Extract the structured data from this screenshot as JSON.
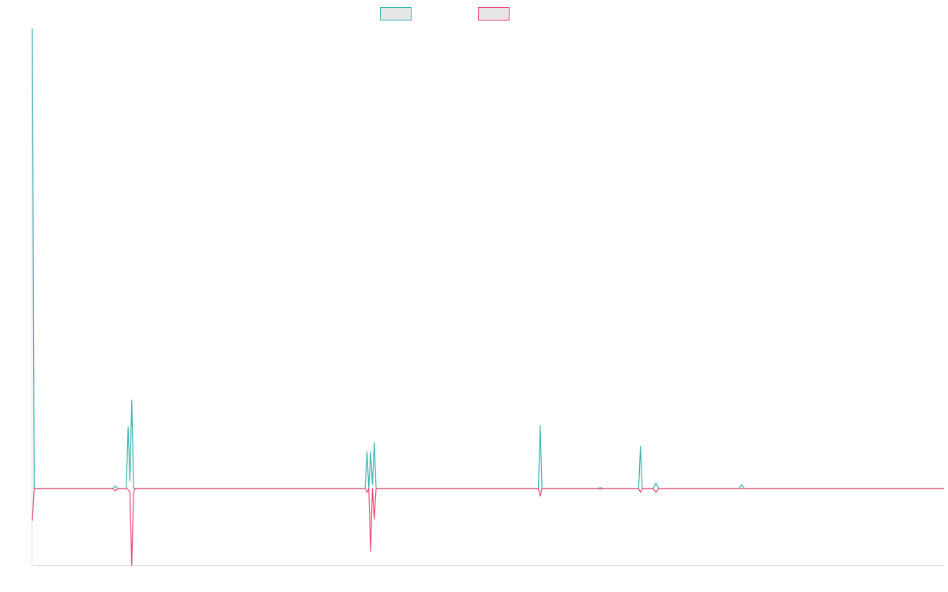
{
  "chart_data": {
    "type": "line",
    "title": "",
    "xlabel": "",
    "ylabel": "",
    "grid": false,
    "legend_position": "top-center",
    "x_range": [
      0,
      1000
    ],
    "y_range": [
      -100,
      600
    ],
    "colors": {
      "series_a": "#3bb5b0",
      "series_b": "#e94b72",
      "legend_fill": "#e6e6e6",
      "axis": "#dddddd"
    },
    "series": [
      {
        "color_key": "series_a",
        "points": [
          [
            0,
            600
          ],
          [
            2,
            0
          ],
          [
            88,
            0
          ],
          [
            91,
            3
          ],
          [
            94,
            0
          ],
          [
            103,
            0
          ],
          [
            105,
            80
          ],
          [
            107,
            10
          ],
          [
            109,
            115
          ],
          [
            111,
            0
          ],
          [
            365,
            0
          ],
          [
            367,
            48
          ],
          [
            369,
            0
          ],
          [
            371,
            48
          ],
          [
            373,
            5
          ],
          [
            375,
            60
          ],
          [
            377,
            0
          ],
          [
            555,
            0
          ],
          [
            557,
            82
          ],
          [
            559,
            0
          ],
          [
            620,
            0
          ],
          [
            623,
            1
          ],
          [
            626,
            0
          ],
          [
            665,
            0
          ],
          [
            667,
            55
          ],
          [
            669,
            0
          ],
          [
            681,
            0
          ],
          [
            684,
            7
          ],
          [
            687,
            0
          ],
          [
            775,
            0
          ],
          [
            778,
            5
          ],
          [
            781,
            0
          ],
          [
            1000,
            0
          ]
        ]
      },
      {
        "color_key": "series_b",
        "points": [
          [
            0,
            -42
          ],
          [
            2,
            0
          ],
          [
            88,
            0
          ],
          [
            91,
            -3
          ],
          [
            94,
            0
          ],
          [
            104,
            0
          ],
          [
            107,
            -5
          ],
          [
            109,
            -100
          ],
          [
            111,
            -5
          ],
          [
            113,
            0
          ],
          [
            365,
            0
          ],
          [
            367,
            -5
          ],
          [
            369,
            0
          ],
          [
            371,
            -82
          ],
          [
            373,
            0
          ],
          [
            375,
            -40
          ],
          [
            377,
            0
          ],
          [
            555,
            0
          ],
          [
            557,
            -10
          ],
          [
            559,
            0
          ],
          [
            620,
            0
          ],
          [
            623,
            -1
          ],
          [
            626,
            0
          ],
          [
            665,
            0
          ],
          [
            667,
            -5
          ],
          [
            669,
            0
          ],
          [
            681,
            0
          ],
          [
            684,
            -5
          ],
          [
            687,
            0
          ],
          [
            1000,
            0
          ]
        ]
      }
    ]
  }
}
